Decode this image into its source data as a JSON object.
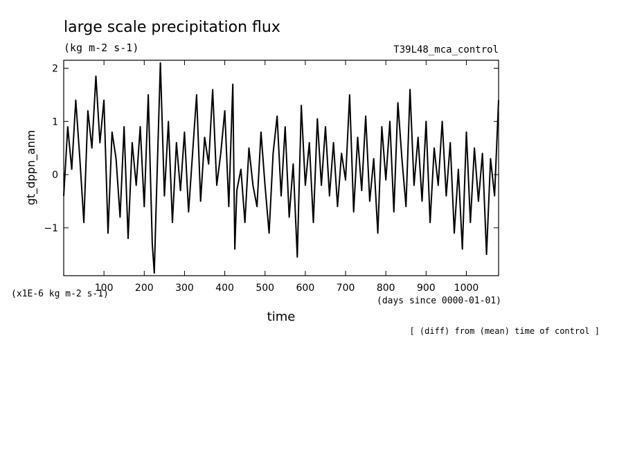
{
  "chart_data": {
    "type": "line",
    "title": "large scale precipitation flux",
    "subtitle": "(kg m-2 s-1)",
    "run_label": "T39L48_mca_control",
    "xlabel": "time",
    "ylabel": "gt_dppn_anm",
    "y_unit_note": "(x1E-6 kg m-2 s-1)",
    "x_unit_note": "(days since 0000-01-01)",
    "footnote": "[ (diff) from (mean) time of control ]",
    "xlim": [
      0,
      1080
    ],
    "ylim": [
      -1.9,
      2.15
    ],
    "x_ticks": [
      100,
      200,
      300,
      400,
      500,
      600,
      700,
      800,
      900,
      1000
    ],
    "y_ticks": [
      -1,
      0,
      1,
      2
    ],
    "series": [
      {
        "name": "gt_dppn_anm",
        "x": [
          0,
          10,
          20,
          30,
          40,
          50,
          60,
          70,
          80,
          90,
          100,
          110,
          120,
          130,
          140,
          150,
          160,
          170,
          180,
          190,
          200,
          210,
          220,
          225,
          230,
          240,
          250,
          260,
          270,
          280,
          290,
          300,
          310,
          320,
          330,
          340,
          350,
          360,
          370,
          380,
          390,
          400,
          410,
          420,
          425,
          430,
          440,
          450,
          460,
          470,
          480,
          490,
          500,
          510,
          520,
          530,
          540,
          550,
          560,
          570,
          580,
          590,
          600,
          610,
          620,
          630,
          640,
          650,
          660,
          670,
          680,
          690,
          700,
          710,
          720,
          730,
          740,
          750,
          760,
          770,
          780,
          790,
          800,
          810,
          820,
          830,
          840,
          850,
          860,
          870,
          880,
          890,
          900,
          910,
          920,
          930,
          940,
          950,
          960,
          970,
          980,
          990,
          1000,
          1010,
          1020,
          1030,
          1040,
          1050,
          1060,
          1070,
          1080
        ],
        "y": [
          -0.4,
          0.9,
          0.1,
          1.4,
          0.3,
          -0.9,
          1.2,
          0.5,
          1.85,
          0.6,
          1.4,
          -1.1,
          0.8,
          0.3,
          -0.8,
          0.9,
          -1.2,
          0.6,
          -0.2,
          0.9,
          -0.6,
          1.5,
          -1.3,
          -1.85,
          -0.5,
          2.1,
          -0.4,
          1.0,
          -0.9,
          0.6,
          -0.3,
          0.8,
          -0.7,
          0.4,
          1.5,
          -0.5,
          0.7,
          0.2,
          1.6,
          -0.2,
          0.4,
          1.2,
          -0.6,
          1.7,
          -1.4,
          -0.3,
          0.1,
          -0.9,
          0.5,
          -0.2,
          -0.6,
          0.8,
          -0.2,
          -1.1,
          0.4,
          1.1,
          -0.4,
          0.9,
          -0.8,
          0.2,
          -1.55,
          1.3,
          -0.2,
          0.6,
          -0.9,
          1.05,
          -0.2,
          0.9,
          -0.4,
          0.6,
          -0.6,
          0.4,
          -0.1,
          1.5,
          -0.7,
          0.7,
          -0.3,
          1.1,
          -0.5,
          0.3,
          -1.1,
          0.9,
          -0.1,
          1.0,
          -0.7,
          1.35,
          0.3,
          -0.6,
          1.6,
          -0.2,
          0.7,
          -0.5,
          1.0,
          -0.9,
          0.5,
          -0.2,
          1.0,
          -0.4,
          0.6,
          -1.1,
          0.1,
          -1.4,
          0.8,
          -0.9,
          0.5,
          -0.5,
          0.4,
          -1.5,
          0.3,
          -0.4,
          1.4
        ]
      }
    ],
    "grid": false,
    "legend": "none"
  }
}
